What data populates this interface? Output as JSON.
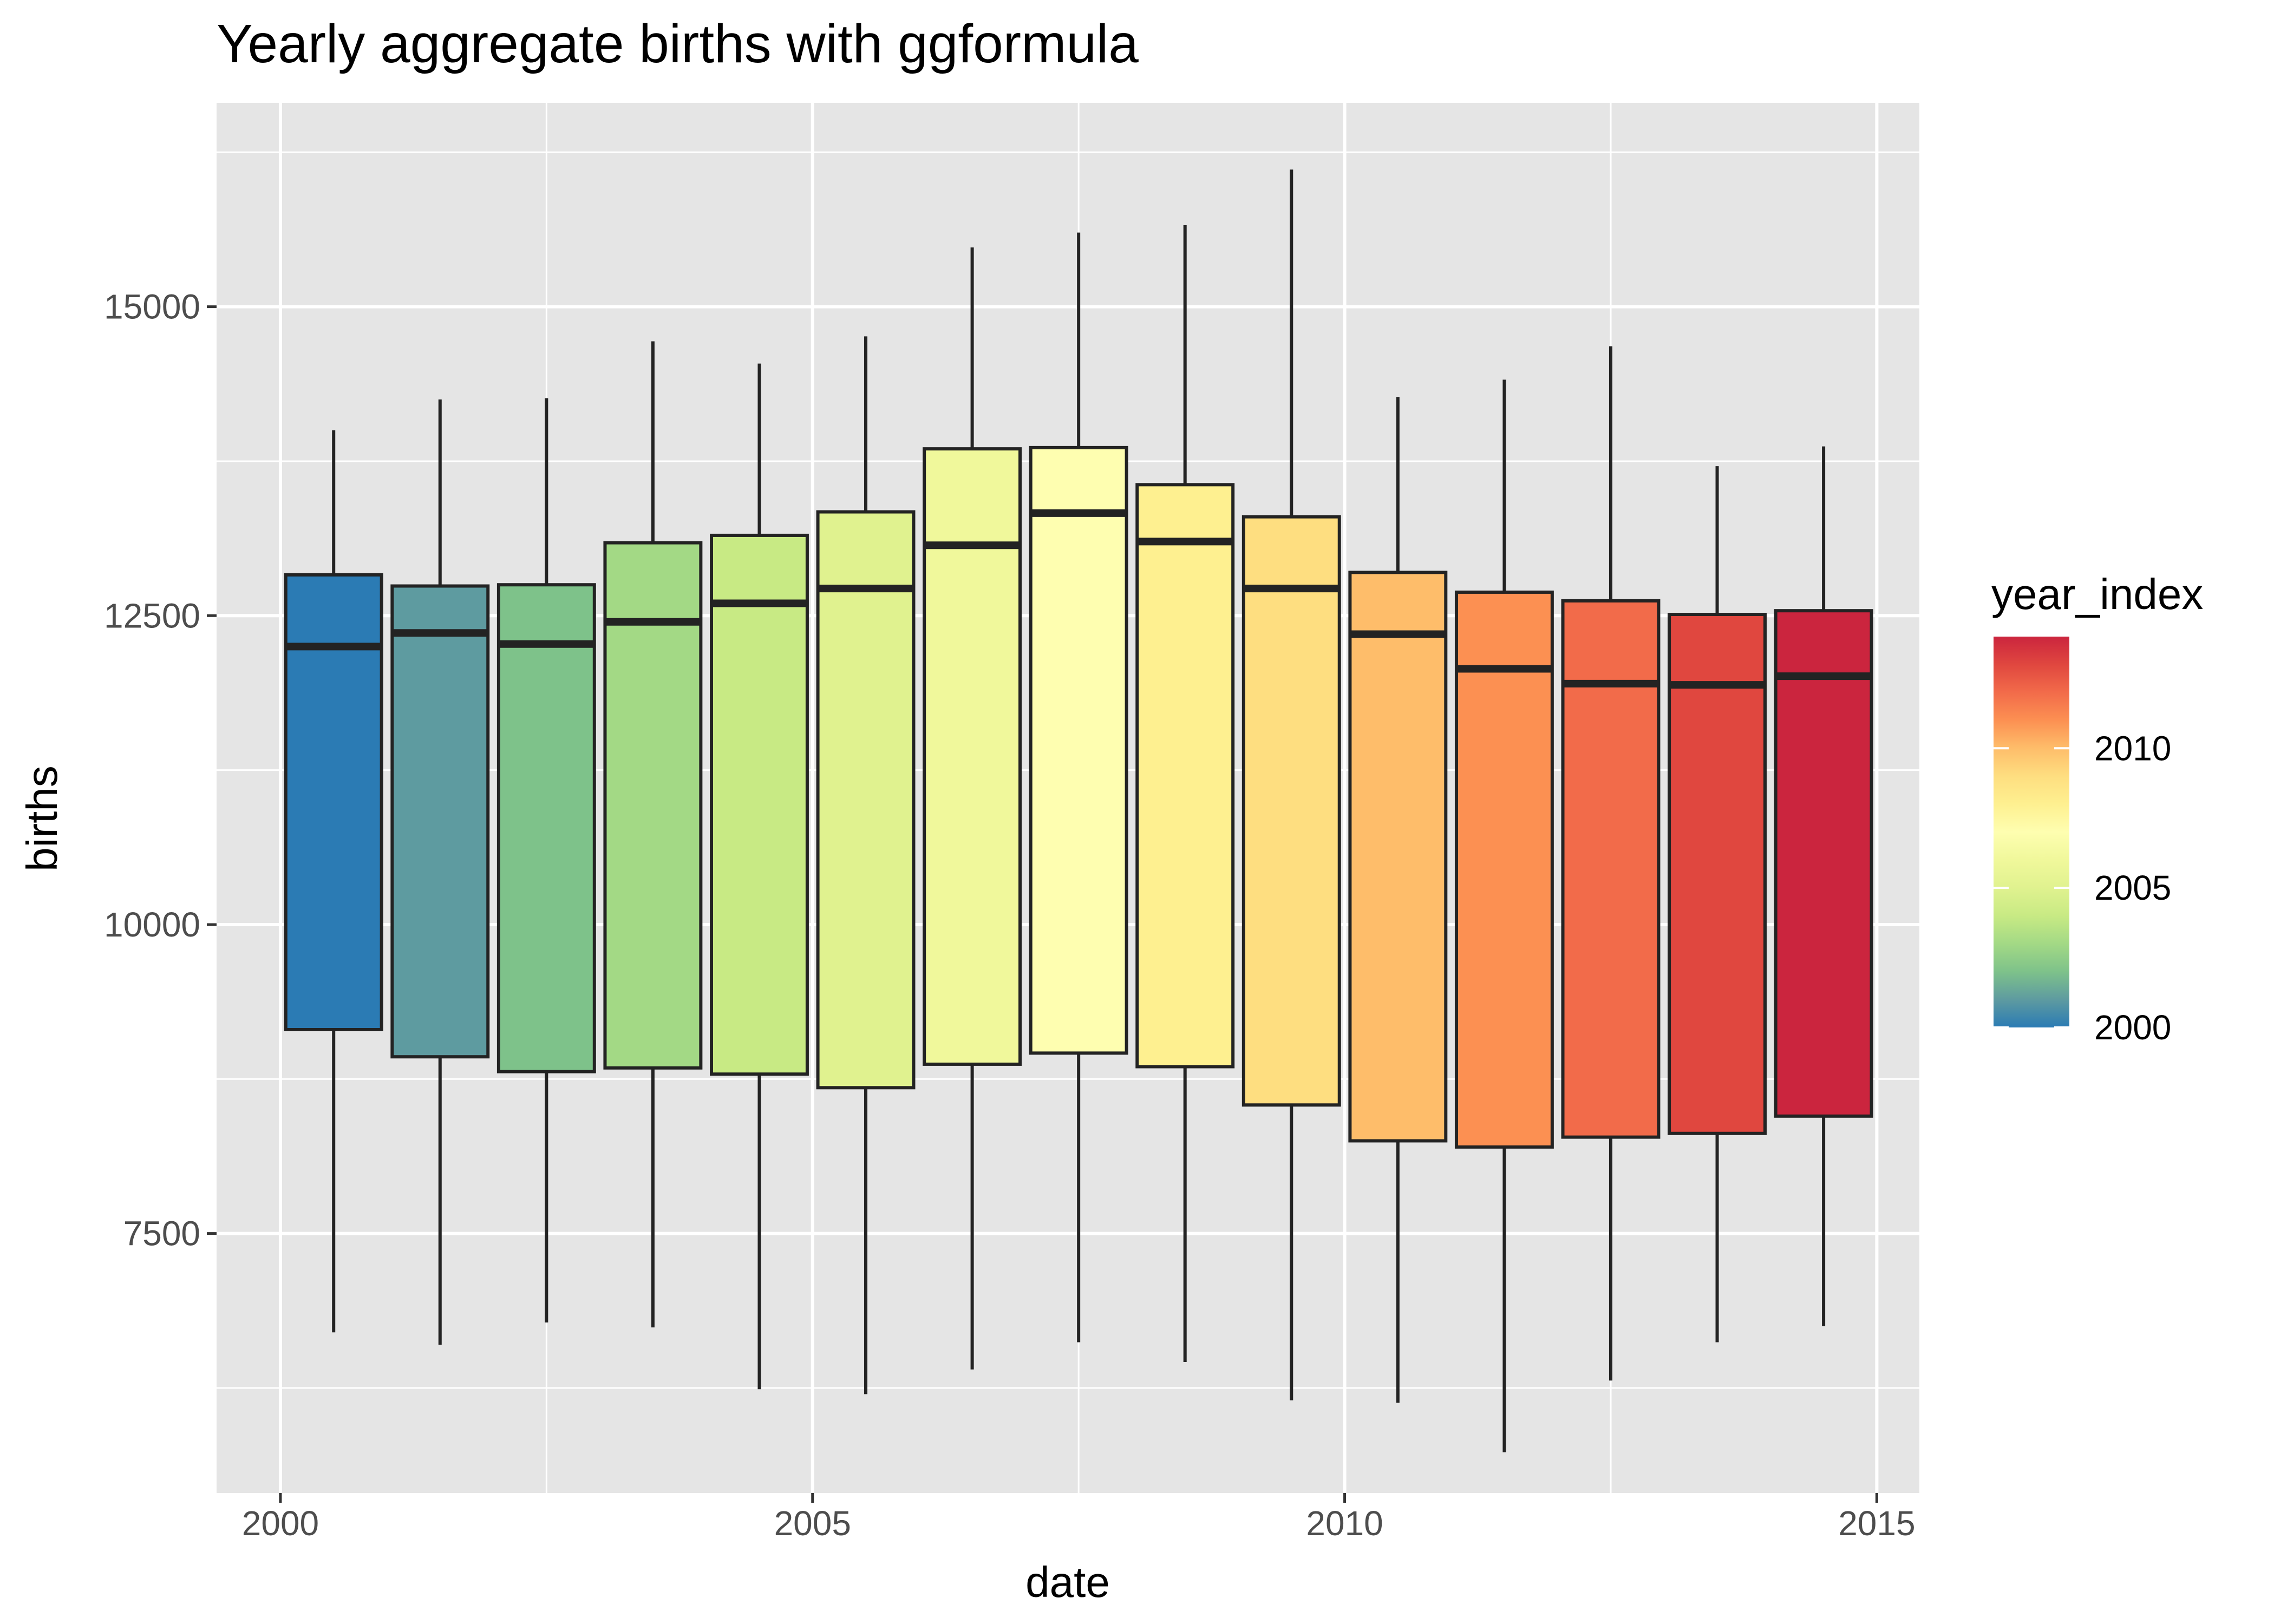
{
  "chart_data": {
    "type": "boxplot",
    "title": "Yearly aggregate births with ggformula",
    "xlabel": "date",
    "ylabel": "births",
    "xlim": [
      1999.4,
      2015.4
    ],
    "ylim": [
      5400,
      16650
    ],
    "x_ticks": [
      2000,
      2005,
      2010,
      2015
    ],
    "x_tick_labels": [
      "2000",
      "2005",
      "2010",
      "2015"
    ],
    "y_ticks": [
      7500,
      10000,
      12500,
      15000
    ],
    "y_tick_labels": [
      "7500",
      "10000",
      "12500",
      "15000"
    ],
    "grid": true,
    "legend": {
      "title": "year_index",
      "position": "right",
      "range": [
        2000,
        2014
      ],
      "breaks": [
        2000,
        2005,
        2010
      ],
      "break_labels": [
        "2000",
        "2005",
        "2010"
      ],
      "palette": [
        "#2b7bb4",
        "#5e9ba0",
        "#7ec28a",
        "#a3d985",
        "#c8ea84",
        "#e0f28f",
        "#f0f89b",
        "#fefeb0",
        "#fef090",
        "#fede80",
        "#febd6a",
        "#fc9052",
        "#f26b4a",
        "#e0473f",
        "#cb253e"
      ]
    },
    "series": [
      {
        "x": 2000.5,
        "year_index": 2000,
        "min": 6700,
        "q1": 9150,
        "median": 12250,
        "q3": 12830,
        "max": 14000
      },
      {
        "x": 2001.5,
        "year_index": 2001,
        "min": 6600,
        "q1": 8930,
        "median": 12360,
        "q3": 12740,
        "max": 14250
      },
      {
        "x": 2002.5,
        "year_index": 2002,
        "min": 6780,
        "q1": 8810,
        "median": 12270,
        "q3": 12750,
        "max": 14260
      },
      {
        "x": 2003.5,
        "year_index": 2003,
        "min": 6740,
        "q1": 8840,
        "median": 12450,
        "q3": 13090,
        "max": 14720
      },
      {
        "x": 2004.5,
        "year_index": 2004,
        "min": 6240,
        "q1": 8790,
        "median": 12600,
        "q3": 13150,
        "max": 14540
      },
      {
        "x": 2005.5,
        "year_index": 2005,
        "min": 6200,
        "q1": 8680,
        "median": 12720,
        "q3": 13340,
        "max": 14760
      },
      {
        "x": 2006.5,
        "year_index": 2006,
        "min": 6400,
        "q1": 8870,
        "median": 13070,
        "q3": 13850,
        "max": 15480
      },
      {
        "x": 2007.5,
        "year_index": 2007,
        "min": 6620,
        "q1": 8960,
        "median": 13330,
        "q3": 13860,
        "max": 15600
      },
      {
        "x": 2008.5,
        "year_index": 2008,
        "min": 6460,
        "q1": 8850,
        "median": 13100,
        "q3": 13560,
        "max": 15660
      },
      {
        "x": 2009.5,
        "year_index": 2009,
        "min": 6150,
        "q1": 8540,
        "median": 12720,
        "q3": 13300,
        "max": 16110
      },
      {
        "x": 2010.5,
        "year_index": 2010,
        "min": 6130,
        "q1": 8250,
        "median": 12350,
        "q3": 12850,
        "max": 14270
      },
      {
        "x": 2011.5,
        "year_index": 2011,
        "min": 5730,
        "q1": 8200,
        "median": 12070,
        "q3": 12690,
        "max": 14410
      },
      {
        "x": 2012.5,
        "year_index": 2012,
        "min": 6310,
        "q1": 8280,
        "median": 11950,
        "q3": 12620,
        "max": 14680
      },
      {
        "x": 2013.5,
        "year_index": 2013,
        "min": 6620,
        "q1": 8310,
        "median": 11940,
        "q3": 12510,
        "max": 13710
      },
      {
        "x": 2014.5,
        "year_index": 2014,
        "min": 6750,
        "q1": 8450,
        "median": 12010,
        "q3": 12540,
        "max": 13870
      }
    ]
  }
}
